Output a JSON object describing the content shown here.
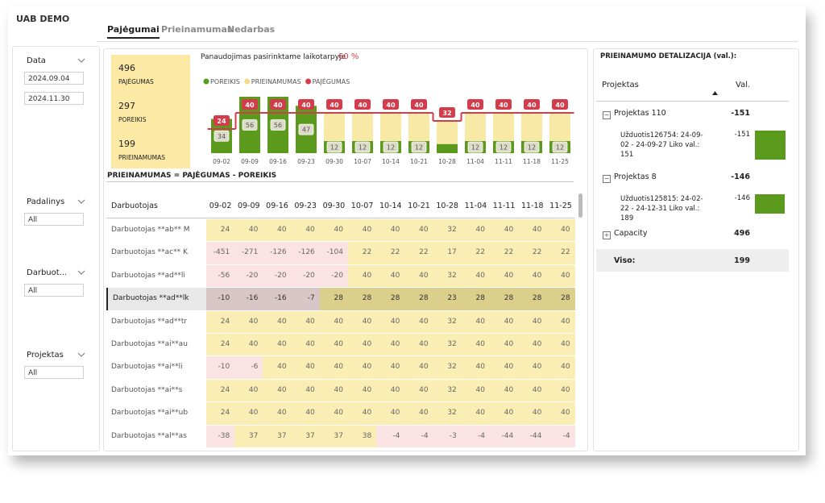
{
  "header": {
    "title": "UAB DEMO",
    "tabs": [
      "Pajėgumai",
      "Prieinamumas",
      "Nedarbas"
    ]
  },
  "filters": {
    "date": {
      "label": "Data",
      "from": "2024.09.04",
      "to": "2024.11.30"
    },
    "padalinys": {
      "label": "Padalinys",
      "value": "All"
    },
    "darbuotojas": {
      "label": "Darbuot...",
      "value": "All"
    },
    "projektas": {
      "label": "Projektas",
      "value": "All"
    }
  },
  "kpis": [
    {
      "value": 496,
      "label": "PAJĖGUMAS"
    },
    {
      "value": 297,
      "label": "POREIKIS"
    },
    {
      "value": 199,
      "label": "PRIEINAMUMAS"
    }
  ],
  "chart_data": {
    "type": "bar",
    "title": "Panaudojimas pasirinktame laikotarpyje",
    "utilization": "60 %",
    "categories": [
      "09-02",
      "09-09",
      "09-16",
      "09-23",
      "09-30",
      "10-07",
      "10-14",
      "10-21",
      "10-28",
      "11-04",
      "11-11",
      "11-18",
      "11-25"
    ],
    "series": [
      {
        "name": "POREIKIS",
        "color": "#5c9a1e",
        "values": [
          34,
          56,
          56,
          47,
          12,
          12,
          12,
          12,
          9,
          12,
          12,
          12,
          12
        ],
        "value_labels": [
          "34",
          "56",
          "56",
          "47",
          "12",
          "12",
          "12",
          "12",
          null,
          "12",
          "12",
          "12",
          "12"
        ]
      },
      {
        "name": "PRIEINAMUMAS",
        "color": "#f9e9a6",
        "values": [
          -10,
          -16,
          -16,
          -7,
          28,
          28,
          28,
          28,
          23,
          28,
          28,
          28,
          28
        ]
      },
      {
        "name": "PAJĖGUMAS",
        "color": "#d43b4b",
        "values": [
          24,
          40,
          40,
          40,
          40,
          40,
          40,
          40,
          32,
          40,
          40,
          40,
          40
        ]
      }
    ]
  },
  "formula": "PRIEINAMUMAS = PAJĖGUMAS - POREIKIS",
  "table": {
    "columns": [
      "Darbuotojas",
      "09-02",
      "09-09",
      "09-16",
      "09-23",
      "09-30",
      "10-07",
      "10-14",
      "10-21",
      "10-28",
      "11-04",
      "11-11",
      "11-18",
      "11-25"
    ],
    "rows": [
      [
        "Darbuotojas **ab** M",
        24,
        40,
        40,
        40,
        40,
        40,
        40,
        40,
        32,
        40,
        40,
        40,
        40
      ],
      [
        "Darbuotojas **ac** K",
        -451,
        -271,
        -126,
        -126,
        -104,
        22,
        22,
        22,
        17,
        22,
        22,
        22,
        22
      ],
      [
        "Darbuotojas **ad**li",
        -56,
        -20,
        -20,
        -20,
        -20,
        40,
        40,
        40,
        32,
        40,
        40,
        40,
        40
      ],
      [
        "Darbuotojas **ad**lk",
        -10,
        -16,
        -16,
        -7,
        28,
        28,
        28,
        28,
        23,
        28,
        28,
        28,
        28
      ],
      [
        "Darbuotojas **ad**tr",
        24,
        40,
        40,
        40,
        40,
        40,
        40,
        40,
        32,
        40,
        40,
        40,
        40
      ],
      [
        "Darbuotojas **ai**au",
        24,
        40,
        40,
        40,
        40,
        40,
        40,
        40,
        32,
        40,
        40,
        40,
        40
      ],
      [
        "Darbuotojas **ai**li",
        -10,
        -6,
        40,
        40,
        40,
        40,
        40,
        40,
        32,
        40,
        40,
        40,
        40
      ],
      [
        "Darbuotojas **ai**s",
        24,
        40,
        40,
        40,
        40,
        40,
        40,
        40,
        32,
        40,
        40,
        40,
        40
      ],
      [
        "Darbuotojas **ai**ub",
        24,
        40,
        40,
        40,
        40,
        40,
        40,
        40,
        32,
        40,
        40,
        40,
        40
      ],
      [
        "Darbuotojas **al**as",
        -38,
        37,
        37,
        37,
        37,
        38,
        -4,
        -4,
        -3,
        -4,
        -44,
        -44,
        -4
      ]
    ],
    "selected_row": 3
  },
  "detail": {
    "title": "PRIEINAMUMO DETALIZACIJA (val.):",
    "columns": [
      "Projektas",
      "Val."
    ],
    "projects": [
      {
        "name": "Projektas 110",
        "value": -151,
        "tasks": [
          {
            "name": "Užduotis126754: 24-09-02 - 24-09-27 Liko val.: 151",
            "value": -151
          }
        ]
      },
      {
        "name": "Projektas 8",
        "value": -146,
        "tasks": [
          {
            "name": "Užduotis125815: 24-02-22 - 24-12-31 Liko val.: 189",
            "value": -146
          }
        ]
      },
      {
        "name": "Capacity",
        "value": 496,
        "tasks": []
      }
    ],
    "total": {
      "label": "Viso:",
      "value": 199
    }
  }
}
